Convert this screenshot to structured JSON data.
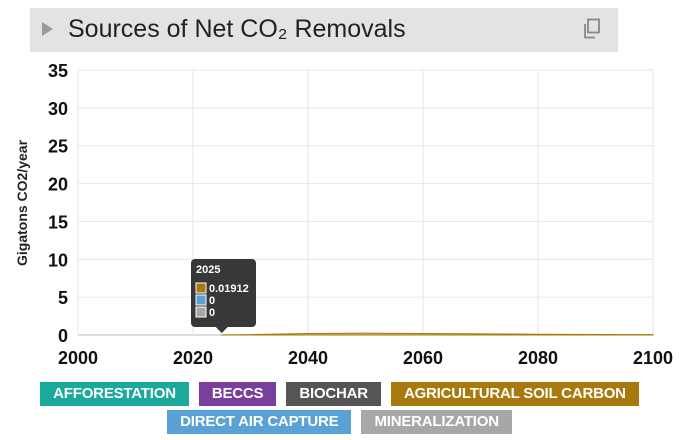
{
  "header": {
    "title": "Sources of Net CO₂ Removals"
  },
  "chart_data": {
    "type": "area",
    "ylabel": "Gigatons CO2/year",
    "xlabel": "",
    "xlim": [
      2000,
      2100
    ],
    "ylim": [
      0,
      35
    ],
    "x_ticks": [
      2000,
      2020,
      2040,
      2060,
      2080,
      2100
    ],
    "y_ticks": [
      0,
      5,
      10,
      15,
      20,
      25,
      30,
      35
    ],
    "grid": true,
    "series": [
      {
        "name": "AFFORESTATION",
        "color": "#1aa99a",
        "points": []
      },
      {
        "name": "BECCS",
        "color": "#7a3f9d",
        "points": []
      },
      {
        "name": "BIOCHAR",
        "color": "#555555",
        "points": []
      },
      {
        "name": "AGRICULTURAL SOIL CARBON",
        "color": "#a8790d",
        "points": [
          [
            2025,
            0.01912
          ],
          [
            2030,
            0.05
          ],
          [
            2040,
            0.2
          ],
          [
            2050,
            0.25
          ],
          [
            2060,
            0.2
          ],
          [
            2080,
            0.1
          ],
          [
            2100,
            0.05
          ]
        ]
      },
      {
        "name": "DIRECT AIR CAPTURE",
        "color": "#5aa1d6",
        "points": [
          [
            2025,
            0
          ]
        ]
      },
      {
        "name": "MINERALIZATION",
        "color": "#a7a7a7",
        "points": [
          [
            2025,
            0
          ]
        ]
      }
    ],
    "tooltip": {
      "year": "2025",
      "rows": [
        {
          "color": "#a8790d",
          "value": "0.01912"
        },
        {
          "color": "#5aa1d6",
          "value": "0"
        },
        {
          "color": "#a7a7a7",
          "value": "0"
        }
      ]
    },
    "legend_position": "bottom"
  }
}
